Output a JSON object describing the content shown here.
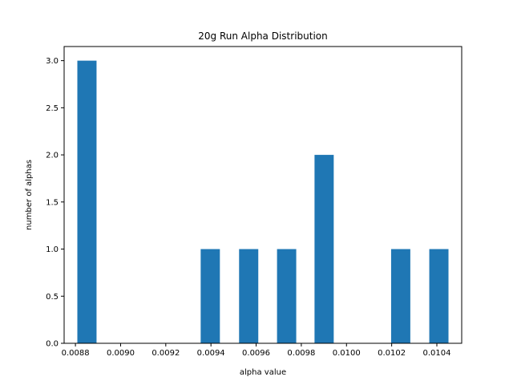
{
  "chart_data": {
    "type": "bar",
    "title": "20g Run Alpha Distribution",
    "xlabel": "alpha value",
    "ylabel": "number of alphas",
    "bars": [
      {
        "x": 0.008851,
        "count": 3
      },
      {
        "x": 0.009397,
        "count": 1
      },
      {
        "x": 0.009567,
        "count": 1
      },
      {
        "x": 0.009735,
        "count": 1
      },
      {
        "x": 0.009901,
        "count": 2
      },
      {
        "x": 0.01024,
        "count": 1
      },
      {
        "x": 0.010409,
        "count": 1
      }
    ],
    "bar_width": 8.5e-05,
    "xlim": [
      0.00875,
      0.01051
    ],
    "ylim": [
      0.0,
      3.15
    ],
    "xticks": [
      "0.0088",
      "0.0090",
      "0.0092",
      "0.0094",
      "0.0096",
      "0.0098",
      "0.0100",
      "0.0102",
      "0.0104"
    ],
    "yticks": [
      "0.0",
      "0.5",
      "1.0",
      "1.5",
      "2.0",
      "2.5",
      "3.0"
    ],
    "bar_color": "#1f77b4",
    "grid": false
  }
}
